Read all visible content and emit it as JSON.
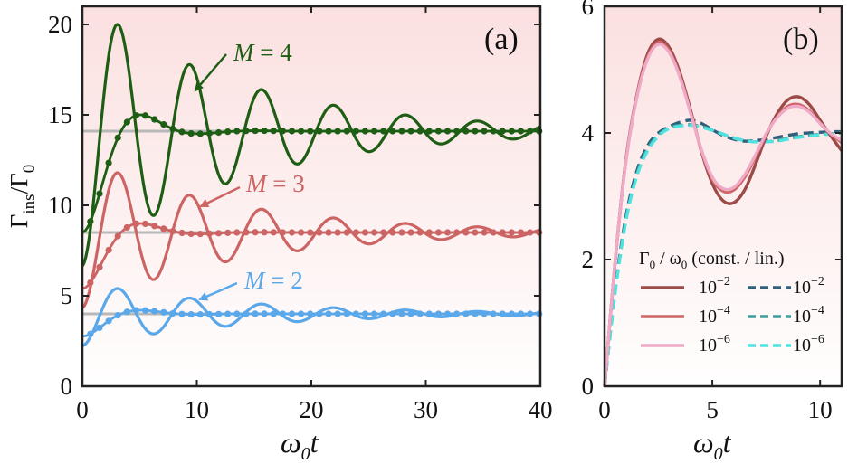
{
  "chart_data": [
    {
      "panel": "(a)",
      "type": "line",
      "xlabel": "ω0t",
      "ylabel": "Γins/Γ0",
      "xlim": [
        0,
        40
      ],
      "ylim": [
        0,
        21
      ],
      "xticks": [
        0,
        10,
        20,
        30,
        40
      ],
      "yticks": [
        0,
        5,
        10,
        15,
        20
      ],
      "series": [
        {
          "name": "M = 4",
          "color": "#1e5e14",
          "asymptote": 14.1,
          "solid_peak": 20.0,
          "solid_peak_t": 2.9,
          "solid_damping": 0.075,
          "solid_omega": 1.0,
          "dot_peak": 15.0,
          "dot_peak_t": 4.4,
          "dot_damping": 0.36,
          "dot_omega": 0.62
        },
        {
          "name": "M = 3",
          "color": "#cd6464",
          "asymptote": 8.5,
          "solid_peak": 11.8,
          "solid_peak_t": 2.8,
          "solid_damping": 0.075,
          "solid_omega": 1.0,
          "dot_peak": 9.0,
          "dot_peak_t": 4.2,
          "dot_damping": 0.36,
          "dot_omega": 0.62
        },
        {
          "name": "M = 2",
          "color": "#5aa8ea",
          "asymptote": 4.0,
          "solid_peak": 5.4,
          "solid_peak_t": 2.6,
          "solid_damping": 0.075,
          "solid_omega": 1.0,
          "dot_peak": 4.2,
          "dot_peak_t": 4.0,
          "dot_damping": 0.36,
          "dot_omega": 0.62
        }
      ],
      "annotations": [
        {
          "label": "M = 4",
          "points_to": [
            9.5,
            16.2
          ]
        },
        {
          "label": "M = 3",
          "points_to": [
            9.5,
            9.6
          ]
        },
        {
          "label": "M = 2",
          "points_to": [
            9.5,
            4.3
          ]
        }
      ]
    },
    {
      "panel": "(b)",
      "type": "line",
      "xlabel": "ω0t",
      "ylabel": "",
      "xlim": [
        0,
        11
      ],
      "ylim": [
        0,
        6
      ],
      "xticks": [
        0,
        5,
        10
      ],
      "yticks": [
        0,
        2,
        4,
        6
      ],
      "legend": {
        "title": "Γ0 / ω0  (const. / lin.)",
        "position": "bottom-right",
        "entries": [
          {
            "label": "10",
            "exp": "−2",
            "style": "solid",
            "color": "#9c4a47"
          },
          {
            "label": "10",
            "exp": "−4",
            "style": "solid",
            "color": "#cf6566"
          },
          {
            "label": "10",
            "exp": "−6",
            "style": "solid",
            "color": "#eeaac6"
          },
          {
            "label": "10",
            "exp": "−2",
            "style": "dashed",
            "color": "#2f5f7a"
          },
          {
            "label": "10",
            "exp": "−4",
            "style": "dashed",
            "color": "#3f9e9c"
          },
          {
            "label": "10",
            "exp": "−6",
            "style": "dashed",
            "color": "#4fe3e0"
          }
        ]
      },
      "series": [
        {
          "name": "const 1e-2",
          "style": "solid",
          "color": "#9c4a47",
          "points": [
            [
              0,
              0
            ],
            [
              0.5,
              2.0
            ],
            [
              1.0,
              3.6
            ],
            [
              1.5,
              4.6
            ],
            [
              2.0,
              5.25
            ],
            [
              2.5,
              5.48
            ],
            [
              3.0,
              5.35
            ],
            [
              3.5,
              4.95
            ],
            [
              4.0,
              4.35
            ],
            [
              4.5,
              3.7
            ],
            [
              5.0,
              3.2
            ],
            [
              5.5,
              2.93
            ],
            [
              6.0,
              2.9
            ],
            [
              6.5,
              3.1
            ],
            [
              7.0,
              3.5
            ],
            [
              7.5,
              3.95
            ],
            [
              8.0,
              4.3
            ],
            [
              8.5,
              4.52
            ],
            [
              9.0,
              4.57
            ],
            [
              9.5,
              4.45
            ],
            [
              10.0,
              4.2
            ],
            [
              10.5,
              3.95
            ],
            [
              11.0,
              3.72
            ]
          ]
        },
        {
          "name": "const 1e-4",
          "style": "solid",
          "color": "#cf6566",
          "points": [
            [
              0,
              0
            ],
            [
              0.5,
              2.0
            ],
            [
              1.0,
              3.58
            ],
            [
              1.5,
              4.58
            ],
            [
              2.0,
              5.2
            ],
            [
              2.5,
              5.43
            ],
            [
              3.0,
              5.3
            ],
            [
              3.5,
              4.9
            ],
            [
              4.0,
              4.32
            ],
            [
              4.5,
              3.72
            ],
            [
              5.0,
              3.27
            ],
            [
              5.5,
              3.08
            ],
            [
              6.0,
              3.1
            ],
            [
              6.5,
              3.3
            ],
            [
              7.0,
              3.62
            ],
            [
              7.5,
              3.98
            ],
            [
              8.0,
              4.25
            ],
            [
              8.5,
              4.42
            ],
            [
              9.0,
              4.45
            ],
            [
              9.5,
              4.35
            ],
            [
              10.0,
              4.15
            ],
            [
              10.5,
              3.98
            ],
            [
              11.0,
              3.85
            ]
          ]
        },
        {
          "name": "const 1e-6",
          "style": "solid",
          "color": "#eeaac6",
          "points": [
            [
              0,
              0
            ],
            [
              0.5,
              2.0
            ],
            [
              1.0,
              3.57
            ],
            [
              1.5,
              4.56
            ],
            [
              2.0,
              5.17
            ],
            [
              2.5,
              5.4
            ],
            [
              3.0,
              5.27
            ],
            [
              3.5,
              4.88
            ],
            [
              4.0,
              4.3
            ],
            [
              4.5,
              3.73
            ],
            [
              5.0,
              3.3
            ],
            [
              5.5,
              3.12
            ],
            [
              6.0,
              3.14
            ],
            [
              6.5,
              3.34
            ],
            [
              7.0,
              3.65
            ],
            [
              7.5,
              3.99
            ],
            [
              8.0,
              4.24
            ],
            [
              8.5,
              4.39
            ],
            [
              9.0,
              4.42
            ],
            [
              9.5,
              4.33
            ],
            [
              10.0,
              4.15
            ],
            [
              10.5,
              3.99
            ],
            [
              11.0,
              3.88
            ]
          ]
        },
        {
          "name": "lin 1e-2",
          "style": "dashed",
          "color": "#2f5f7a",
          "points": [
            [
              0,
              0
            ],
            [
              0.5,
              1.55
            ],
            [
              1.0,
              2.7
            ],
            [
              1.5,
              3.4
            ],
            [
              2.0,
              3.8
            ],
            [
              2.5,
              4.0
            ],
            [
              3.0,
              4.1
            ],
            [
              3.5,
              4.17
            ],
            [
              4.0,
              4.2
            ],
            [
              4.5,
              4.15
            ],
            [
              5.0,
              4.05
            ],
            [
              5.5,
              3.96
            ],
            [
              6.0,
              3.9
            ],
            [
              6.5,
              3.87
            ],
            [
              7.0,
              3.88
            ],
            [
              7.5,
              3.9
            ],
            [
              8.0,
              3.93
            ],
            [
              8.5,
              3.96
            ],
            [
              9.0,
              3.99
            ],
            [
              9.5,
              4.0
            ],
            [
              10.0,
              4.01
            ],
            [
              10.5,
              4.02
            ],
            [
              11.0,
              4.02
            ]
          ]
        },
        {
          "name": "lin 1e-4",
          "style": "dashed",
          "color": "#3f9e9c",
          "points": [
            [
              0,
              0
            ],
            [
              0.5,
              1.52
            ],
            [
              1.0,
              2.65
            ],
            [
              1.5,
              3.35
            ],
            [
              2.0,
              3.75
            ],
            [
              2.5,
              3.97
            ],
            [
              3.0,
              4.08
            ],
            [
              3.5,
              4.12
            ],
            [
              4.0,
              4.13
            ],
            [
              4.5,
              4.1
            ],
            [
              5.0,
              4.05
            ],
            [
              5.5,
              3.98
            ],
            [
              6.0,
              3.92
            ],
            [
              6.5,
              3.88
            ],
            [
              7.0,
              3.86
            ],
            [
              7.5,
              3.86
            ],
            [
              8.0,
              3.88
            ],
            [
              8.5,
              3.91
            ],
            [
              9.0,
              3.94
            ],
            [
              9.5,
              3.96
            ],
            [
              10.0,
              3.98
            ],
            [
              10.5,
              3.99
            ],
            [
              11.0,
              4.0
            ]
          ]
        },
        {
          "name": "lin 1e-6",
          "style": "dashed",
          "color": "#4fe3e0",
          "points": [
            [
              0,
              0
            ],
            [
              0.5,
              1.5
            ],
            [
              1.0,
              2.62
            ],
            [
              1.5,
              3.32
            ],
            [
              2.0,
              3.72
            ],
            [
              2.5,
              3.95
            ],
            [
              3.0,
              4.07
            ],
            [
              3.5,
              4.11
            ],
            [
              4.0,
              4.12
            ],
            [
              4.5,
              4.09
            ],
            [
              5.0,
              4.04
            ],
            [
              5.5,
              3.98
            ],
            [
              6.0,
              3.92
            ],
            [
              6.5,
              3.88
            ],
            [
              7.0,
              3.86
            ],
            [
              7.5,
              3.86
            ],
            [
              8.0,
              3.87
            ],
            [
              8.5,
              3.9
            ],
            [
              9.0,
              3.93
            ],
            [
              9.5,
              3.95
            ],
            [
              10.0,
              3.97
            ],
            [
              10.5,
              3.98
            ],
            [
              11.0,
              3.99
            ]
          ]
        }
      ]
    }
  ],
  "colors": {
    "bg_top": "#fbe1e1",
    "bg_bottom": "#ffffff",
    "grid_ref": "#b8b8b8",
    "axis": "#222222"
  }
}
